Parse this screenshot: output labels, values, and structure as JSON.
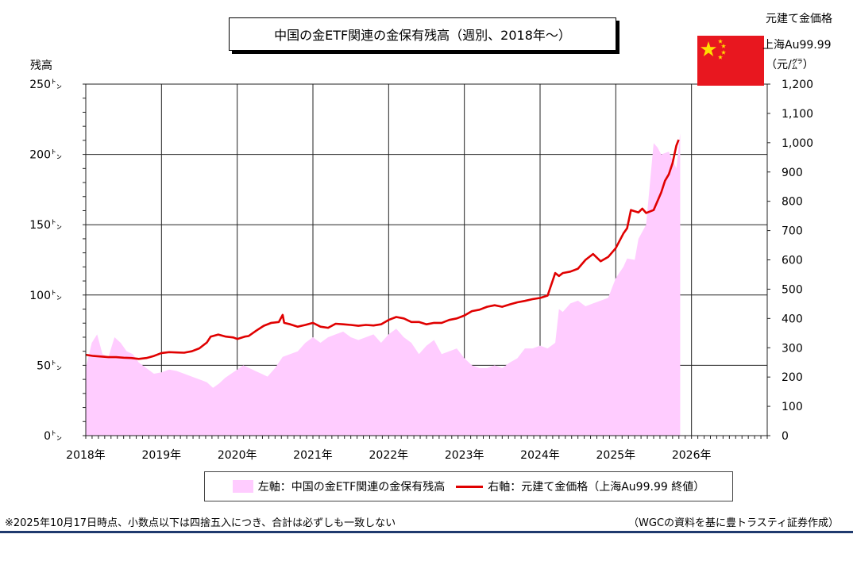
{
  "title": "中国の金ETF関連の金保有残高（週別、2018年～）",
  "left_axis_label": "残高",
  "right_axis_label_1": "元建て金価格",
  "right_axis_label_2": "上海Au99.99",
  "right_axis_label_3": "（元/㌘）",
  "footnote": "※2025年10月17日時点、小数点以下は四捨五入につき、合計は必ずしも一致しない",
  "source": "（WGCの資料を基に豊トラスティ証券作成）",
  "chart_data": {
    "type": "area",
    "x_tick_labels": [
      "2018年",
      "2019年",
      "2020年",
      "2021年",
      "2022年",
      "2023年",
      "2024年",
      "2025年",
      "2026年"
    ],
    "y_left_ticks": [
      "0㌧",
      "50㌧",
      "100㌧",
      "150㌧",
      "200㌧",
      "250㌧"
    ],
    "y_right_ticks": [
      "0",
      "100",
      "200",
      "300",
      "400",
      "500",
      "600",
      "700",
      "800",
      "900",
      "1,000",
      "1,100",
      "1,200"
    ],
    "ylim_left": [
      0,
      250
    ],
    "ylim_right": [
      0,
      1200
    ],
    "xlim": [
      2018.0,
      2027.0
    ],
    "grid": true,
    "legend_position": "bottom",
    "series": [
      {
        "name": "左軸：中国の金ETF関連の金保有残高",
        "axis": "left",
        "color": "#ffccff",
        "x": [
          2018.0,
          2018.08,
          2018.15,
          2018.22,
          2018.3,
          2018.38,
          2018.46,
          2018.54,
          2018.62,
          2018.7,
          2018.8,
          2018.9,
          2019.0,
          2019.1,
          2019.2,
          2019.3,
          2019.4,
          2019.5,
          2019.6,
          2019.68,
          2019.76,
          2019.84,
          2019.92,
          2020.0,
          2020.08,
          2020.16,
          2020.24,
          2020.32,
          2020.4,
          2020.5,
          2020.6,
          2020.7,
          2020.8,
          2020.9,
          2021.0,
          2021.1,
          2021.2,
          2021.3,
          2021.4,
          2021.5,
          2021.6,
          2021.7,
          2021.8,
          2021.9,
          2022.0,
          2022.1,
          2022.2,
          2022.3,
          2022.4,
          2022.5,
          2022.6,
          2022.7,
          2022.8,
          2022.9,
          2023.0,
          2023.1,
          2023.2,
          2023.3,
          2023.4,
          2023.5,
          2023.6,
          2023.7,
          2023.8,
          2023.9,
          2024.0,
          2024.1,
          2024.2,
          2024.25,
          2024.3,
          2024.4,
          2024.5,
          2024.6,
          2024.7,
          2024.8,
          2024.9,
          2025.0,
          2025.1,
          2025.15,
          2025.25,
          2025.3,
          2025.4,
          2025.5,
          2025.55,
          2025.6,
          2025.7,
          2025.8,
          2025.85
        ],
        "values": [
          48,
          66,
          72,
          58,
          56,
          70,
          66,
          60,
          58,
          52,
          48,
          44,
          45,
          47,
          46,
          44,
          42,
          40,
          38,
          34,
          37,
          41,
          44,
          47,
          50,
          48,
          46,
          44,
          42,
          48,
          56,
          58,
          60,
          66,
          70,
          66,
          70,
          72,
          74,
          70,
          68,
          70,
          72,
          66,
          72,
          76,
          70,
          66,
          58,
          64,
          68,
          58,
          60,
          62,
          55,
          50,
          48,
          48,
          50,
          48,
          52,
          55,
          62,
          62,
          64,
          62,
          66,
          90,
          88,
          94,
          96,
          92,
          94,
          96,
          98,
          112,
          120,
          126,
          125,
          140,
          150,
          208,
          205,
          200,
          202,
          190,
          215
        ]
      },
      {
        "name": "右軸：元建て金価格（上海Au99.99 終値）",
        "axis": "right",
        "color": "#e00000",
        "x": [
          2018.0,
          2018.1,
          2018.2,
          2018.3,
          2018.4,
          2018.5,
          2018.6,
          2018.7,
          2018.8,
          2018.9,
          2019.0,
          2019.1,
          2019.2,
          2019.3,
          2019.4,
          2019.5,
          2019.6,
          2019.65,
          2019.75,
          2019.85,
          2019.95,
          2020.0,
          2020.1,
          2020.15,
          2020.25,
          2020.35,
          2020.45,
          2020.55,
          2020.6,
          2020.62,
          2020.7,
          2020.8,
          2020.9,
          2021.0,
          2021.1,
          2021.2,
          2021.3,
          2021.4,
          2021.5,
          2021.6,
          2021.7,
          2021.8,
          2021.9,
          2022.0,
          2022.1,
          2022.2,
          2022.3,
          2022.4,
          2022.5,
          2022.6,
          2022.7,
          2022.8,
          2022.9,
          2023.0,
          2023.1,
          2023.2,
          2023.3,
          2023.4,
          2023.5,
          2023.6,
          2023.7,
          2023.8,
          2023.9,
          2024.0,
          2024.1,
          2024.2,
          2024.25,
          2024.3,
          2024.4,
          2024.5,
          2024.6,
          2024.7,
          2024.8,
          2024.9,
          2025.0,
          2025.1,
          2025.15,
          2025.2,
          2025.3,
          2025.35,
          2025.4,
          2025.5,
          2025.6,
          2025.65,
          2025.7,
          2025.75,
          2025.8,
          2025.83
        ],
        "values": [
          276,
          272,
          270,
          268,
          268,
          266,
          265,
          262,
          265,
          272,
          282,
          285,
          284,
          283,
          288,
          298,
          318,
          338,
          345,
          338,
          335,
          330,
          338,
          340,
          358,
          375,
          385,
          388,
          412,
          385,
          380,
          372,
          378,
          385,
          372,
          368,
          382,
          380,
          378,
          375,
          378,
          376,
          380,
          395,
          405,
          400,
          388,
          388,
          380,
          385,
          385,
          395,
          400,
          410,
          425,
          430,
          440,
          445,
          440,
          448,
          455,
          460,
          466,
          470,
          478,
          555,
          545,
          555,
          560,
          570,
          600,
          620,
          595,
          610,
          640,
          690,
          708,
          770,
          762,
          775,
          760,
          770,
          830,
          870,
          892,
          930,
          990,
          1010
        ]
      }
    ]
  }
}
